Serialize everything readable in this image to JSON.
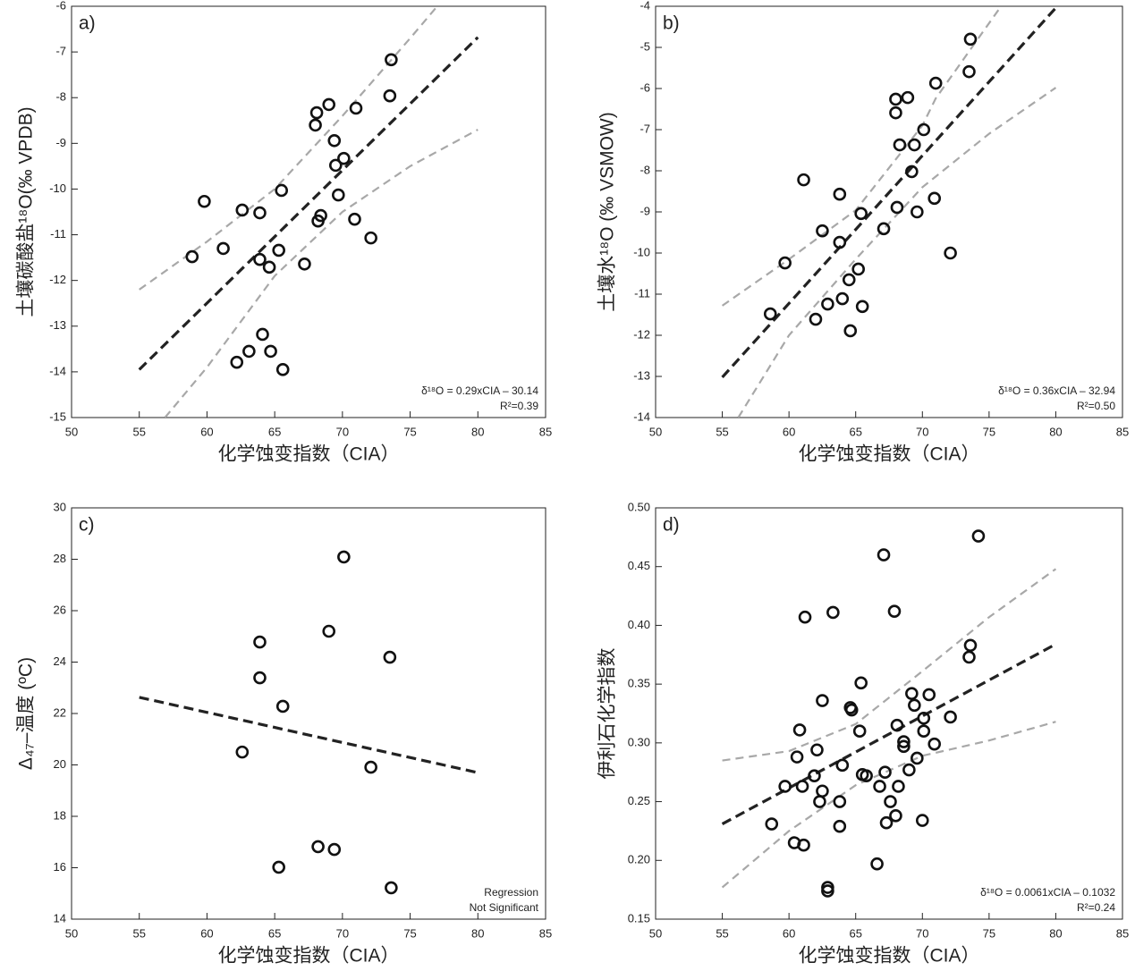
{
  "chart_data": [
    {
      "type": "scatter",
      "panel_label": "a)",
      "xlabel": "化学蚀变指数（CIA）",
      "ylabel": "土壤碳酸盐¹⁸O(‰ VPDB)",
      "xlim": [
        50,
        85
      ],
      "xticks": [
        50,
        55,
        60,
        65,
        70,
        75,
        80,
        85
      ],
      "ylim": [
        -15,
        -6
      ],
      "yticks": [
        -6,
        -7,
        -8,
        -9,
        -10,
        -11,
        -12,
        -13,
        -14,
        -15
      ],
      "color": "#111111",
      "x": [
        73.6,
        73.5,
        69.0,
        71.0,
        68.1,
        68.0,
        69.4,
        70.1,
        69.5,
        65.5,
        59.8,
        62.6,
        63.9,
        69.7,
        68.4,
        68.2,
        70.9,
        72.1,
        61.2,
        65.3,
        58.9,
        63.9,
        64.6,
        67.2,
        64.1,
        63.1,
        64.7,
        62.2,
        65.6
      ],
      "y": [
        -7.17,
        -7.96,
        -8.15,
        -8.23,
        -8.33,
        -8.6,
        -8.94,
        -9.33,
        -9.48,
        -10.03,
        -10.27,
        -10.46,
        -10.52,
        -10.13,
        -10.58,
        -10.7,
        -10.66,
        -11.07,
        -11.3,
        -11.34,
        -11.48,
        -11.54,
        -11.71,
        -11.64,
        -13.18,
        -13.55,
        -13.55,
        -13.79,
        -13.95
      ],
      "fit_line": {
        "color": "#222222",
        "x": [
          55,
          80
        ],
        "y": [
          -13.95,
          -6.68
        ]
      },
      "confidence_upper": {
        "color": "#a8a8a8",
        "x": [
          55,
          60,
          65,
          70,
          75,
          77
        ],
        "y": [
          -12.2,
          -11.15,
          -10.0,
          -8.4,
          -6.7,
          -6
        ]
      },
      "confidence_lower": {
        "color": "#a8a8a8",
        "x": [
          56.9,
          60,
          65,
          70,
          75,
          80
        ],
        "y": [
          -15,
          -13.9,
          -11.9,
          -10.5,
          -9.5,
          -8.7
        ]
      },
      "annotations": [
        "δ¹⁸O = 0.29xCIA – 30.14",
        "R²=0.39"
      ]
    },
    {
      "type": "scatter",
      "panel_label": "b)",
      "xlabel": "化学蚀变指数（CIA）",
      "ylabel": "土壤水¹⁸O (‰ VSMOW)",
      "xlim": [
        50,
        85
      ],
      "xticks": [
        50,
        55,
        60,
        65,
        70,
        75,
        80,
        85
      ],
      "ylim": [
        -14,
        -4
      ],
      "yticks": [
        -4,
        -5,
        -6,
        -7,
        -8,
        -9,
        -10,
        -11,
        -12,
        -13,
        -14
      ],
      "color": "#111111",
      "x": [
        73.6,
        73.5,
        71.0,
        68.0,
        68.9,
        68.0,
        70.1,
        68.3,
        69.4,
        69.2,
        61.1,
        63.8,
        70.9,
        68.1,
        69.6,
        65.4,
        62.5,
        67.1,
        63.8,
        72.1,
        59.7,
        65.2,
        64.5,
        64.0,
        62.9,
        65.5,
        62.0,
        58.6,
        64.6
      ],
      "y": [
        -4.8,
        -5.59,
        -5.87,
        -6.26,
        -6.22,
        -6.59,
        -7.0,
        -7.37,
        -7.37,
        -8.02,
        -8.22,
        -8.57,
        -8.67,
        -8.89,
        -9.0,
        -9.04,
        -9.46,
        -9.41,
        -9.74,
        -10.0,
        -10.24,
        -10.39,
        -10.65,
        -11.11,
        -11.24,
        -11.3,
        -11.61,
        -11.48,
        -11.89
      ],
      "fit_line": {
        "color": "#222222",
        "x": [
          55,
          80
        ],
        "y": [
          -13.02,
          -4.04
        ]
      },
      "confidence_upper": {
        "color": "#a8a8a8",
        "x": [
          55,
          60,
          65,
          70,
          71,
          75.9
        ],
        "y": [
          -11.28,
          -10.15,
          -8.96,
          -6.9,
          -6.24,
          -4
        ]
      },
      "confidence_lower": {
        "color": "#a8a8a8",
        "x": [
          56.2,
          60,
          65,
          70,
          75,
          80
        ],
        "y": [
          -14,
          -12.0,
          -10.15,
          -8.4,
          -7.1,
          -5.98
        ]
      },
      "annotations": [
        "δ¹⁸O = 0.36xCIA – 32.94",
        "R²=0.50"
      ]
    },
    {
      "type": "scatter",
      "panel_label": "c)",
      "xlabel": "化学蚀变指数（CIA）",
      "ylabel": "Δ₄₇–温度 (ºC)",
      "xlim": [
        50,
        85
      ],
      "xticks": [
        50,
        55,
        60,
        65,
        70,
        75,
        80,
        85
      ],
      "ylim": [
        14,
        30
      ],
      "yticks": [
        30,
        28,
        26,
        24,
        22,
        20,
        18,
        16,
        14
      ],
      "color": "#111111",
      "x": [
        70.1,
        69.0,
        63.9,
        73.5,
        63.9,
        65.6,
        62.6,
        72.1,
        68.2,
        69.4,
        65.3,
        73.6
      ],
      "y": [
        28.09,
        25.2,
        24.78,
        24.19,
        23.39,
        22.28,
        20.5,
        19.91,
        16.82,
        16.71,
        16.02,
        15.22
      ],
      "fit_line": {
        "color": "#222222",
        "x": [
          55,
          80
        ],
        "y": [
          22.63,
          19.7
        ]
      },
      "annotations": [
        "Regression",
        "Not Significant"
      ]
    },
    {
      "type": "scatter",
      "panel_label": "d)",
      "xlabel": "化学蚀变指数（CIA）",
      "ylabel": "伊利石化学指数",
      "xlim": [
        50,
        85
      ],
      "xticks": [
        50,
        55,
        60,
        65,
        70,
        75,
        80,
        85
      ],
      "ylim": [
        0.15,
        0.5
      ],
      "yticks": [
        {
          "value": 0.5,
          "label": "0.50"
        },
        0.45,
        {
          "value": 0.4,
          "label": "0.40"
        },
        0.35,
        {
          "value": 0.3,
          "label": "0.30"
        },
        0.25,
        {
          "value": 0.2,
          "label": "0.20"
        },
        0.15
      ],
      "color": "#111111",
      "x": [
        74.2,
        67.1,
        67.9,
        63.3,
        61.2,
        73.6,
        73.5,
        65.4,
        69.2,
        70.5,
        62.5,
        69.4,
        64.6,
        64.7,
        70.1,
        72.1,
        68.1,
        60.8,
        65.3,
        70.1,
        70.9,
        68.6,
        68.6,
        62.1,
        60.6,
        69.6,
        69.0,
        64.0,
        65.5,
        65.8,
        67.2,
        61.9,
        59.7,
        61.0,
        68.2,
        66.8,
        62.5,
        63.8,
        62.3,
        67.6,
        68.0,
        67.3,
        70.0,
        58.7,
        63.8,
        60.4,
        61.1,
        66.6,
        62.9,
        62.9
      ],
      "y": [
        0.476,
        0.46,
        0.412,
        0.411,
        0.407,
        0.383,
        0.373,
        0.351,
        0.342,
        0.341,
        0.336,
        0.332,
        0.33,
        0.328,
        0.321,
        0.322,
        0.315,
        0.311,
        0.31,
        0.31,
        0.299,
        0.301,
        0.297,
        0.294,
        0.288,
        0.287,
        0.277,
        0.281,
        0.273,
        0.272,
        0.275,
        0.272,
        0.263,
        0.263,
        0.263,
        0.263,
        0.259,
        0.25,
        0.25,
        0.25,
        0.238,
        0.232,
        0.234,
        0.231,
        0.229,
        0.215,
        0.213,
        0.197,
        0.177,
        0.174
      ],
      "fit_line": {
        "color": "#222222",
        "x": [
          55,
          80
        ],
        "y": [
          0.231,
          0.384
        ]
      },
      "confidence_upper": {
        "color": "#a8a8a8",
        "x": [
          55,
          60,
          65,
          70,
          75,
          80
        ],
        "y": [
          0.285,
          0.293,
          0.316,
          0.361,
          0.407,
          0.448
        ]
      },
      "confidence_lower": {
        "color": "#a8a8a8",
        "x": [
          55,
          60,
          65,
          70,
          75,
          80
        ],
        "y": [
          0.177,
          0.225,
          0.264,
          0.289,
          0.302,
          0.318
        ]
      },
      "annotations": [
        "δ¹⁸O = 0.0061xCIA – 0.1032",
        "R²=0.24"
      ]
    }
  ]
}
